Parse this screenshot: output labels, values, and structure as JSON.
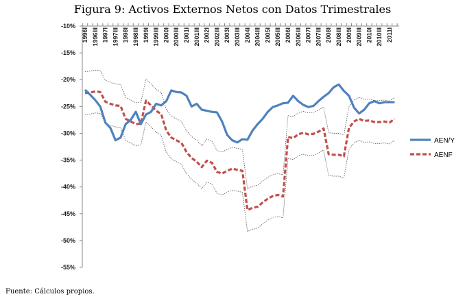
{
  "chart_data": {
    "type": "line",
    "title": "Figura 9: Activos Externos Netos con Datos Trimestrales",
    "footer": "Fuente: Cálculos propios.",
    "xlabel": "",
    "ylabel": "",
    "ylim": [
      -55,
      -10
    ],
    "yticks": [
      "-10%",
      "-15%",
      "-20%",
      "-25%",
      "-30%",
      "-35%",
      "-40%",
      "-45%",
      "-50%",
      "-55%"
    ],
    "x_tick_labels": [
      "1996I",
      "1996III",
      "1997I",
      "1997III",
      "1998I",
      "1998III",
      "1999I",
      "1999III",
      "2000I",
      "2000III",
      "2001I",
      "2001III",
      "2002I",
      "2002III",
      "2003I",
      "2003III",
      "2004I",
      "2004III",
      "2005I",
      "2005III",
      "2006I",
      "2006III",
      "2007I",
      "2007III",
      "2008I",
      "2008III",
      "2009I",
      "2009III",
      "2010I",
      "2010III",
      "2011I"
    ],
    "x_start": "1996 Q1",
    "frequency": "quarterly",
    "legend_position": "right",
    "series": [
      {
        "name": "AEN/Y",
        "color": "#4F81BD",
        "style": "solid",
        "values": [
          -21.9,
          -22.8,
          -23.8,
          -25.0,
          -28.0,
          -29.0,
          -31.3,
          -30.8,
          -28.3,
          -27.5,
          -26.0,
          -28.3,
          -26.5,
          -26.0,
          -24.5,
          -24.8,
          -24.0,
          -22.0,
          -22.3,
          -22.4,
          -23.0,
          -25.0,
          -24.5,
          -25.6,
          -25.8,
          -26.0,
          -26.1,
          -27.8,
          -30.3,
          -31.3,
          -31.7,
          -31.1,
          -31.2,
          -29.5,
          -28.3,
          -27.3,
          -26.0,
          -25.1,
          -24.8,
          -24.4,
          -24.3,
          -23.0,
          -24.0,
          -24.7,
          -25.1,
          -24.9,
          -24.0,
          -23.2,
          -22.5,
          -21.4,
          -20.9,
          -22.1,
          -23.0,
          -25.2,
          -26.3,
          -25.6,
          -24.4,
          -24.0,
          -24.4,
          -24.2,
          -24.2,
          -24.2
        ]
      },
      {
        "name": "AENF",
        "color": "#C0504D",
        "style": "dashed",
        "values": [
          -22.5,
          -22.4,
          -22.2,
          -22.3,
          -24.1,
          -24.5,
          -24.8,
          -24.9,
          -27.3,
          -27.8,
          -28.3,
          -28.2,
          -23.9,
          -24.8,
          -25.8,
          -26.4,
          -29.5,
          -30.8,
          -31.3,
          -31.8,
          -33.5,
          -34.6,
          -35.3,
          -36.3,
          -35.1,
          -35.5,
          -37.2,
          -37.5,
          -37.0,
          -36.6,
          -36.8,
          -37.0,
          -44.3,
          -43.9,
          -43.7,
          -42.9,
          -42.2,
          -41.7,
          -41.5,
          -41.8,
          -30.7,
          -30.9,
          -30.2,
          -29.9,
          -30.2,
          -30.1,
          -29.7,
          -29.1,
          -33.9,
          -34.0,
          -34.0,
          -34.3,
          -29.0,
          -27.8,
          -27.3,
          -27.7,
          -27.6,
          -27.9,
          -27.9,
          -27.8,
          -28.0,
          -27.3
        ]
      }
    ],
    "confidence_band": {
      "around": "AENF",
      "half_width": 4.0,
      "color": "#555555",
      "style": "dotted"
    }
  }
}
